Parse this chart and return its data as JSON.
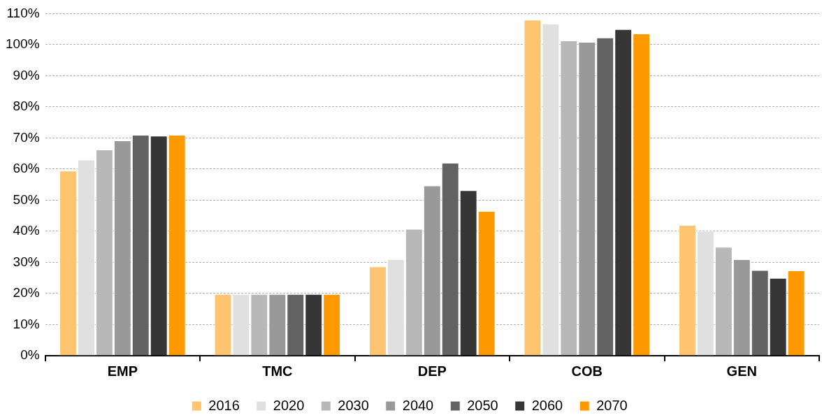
{
  "chart_data": {
    "type": "bar",
    "categories": [
      "EMP",
      "TMC",
      "DEP",
      "COB",
      "GEN"
    ],
    "series": [
      {
        "name": "2016",
        "color": "#ffc470",
        "values": [
          59.5,
          19.8,
          28.7,
          108,
          42
        ]
      },
      {
        "name": "2020",
        "color": "#e0e0e0",
        "values": [
          63,
          19.8,
          31,
          106.7,
          40.1
        ]
      },
      {
        "name": "2030",
        "color": "#b8b8b8",
        "values": [
          66.3,
          19.8,
          40.8,
          101.3,
          35
        ]
      },
      {
        "name": "2040",
        "color": "#999999",
        "values": [
          69.2,
          19.8,
          54.7,
          100.9,
          31
        ]
      },
      {
        "name": "2050",
        "color": "#636363",
        "values": [
          71,
          19.8,
          62,
          102.3,
          27.5
        ]
      },
      {
        "name": "2060",
        "color": "#363636",
        "values": [
          70.7,
          19.8,
          53.2,
          105,
          25
        ]
      },
      {
        "name": "2070",
        "color": "#ff9900",
        "values": [
          71,
          19.8,
          46.5,
          103.6,
          27.4
        ]
      }
    ],
    "ylim": [
      0,
      110
    ],
    "yticks": [
      {
        "value": 0,
        "label": "0%"
      },
      {
        "value": 10,
        "label": "10%"
      },
      {
        "value": 20,
        "label": "20%"
      },
      {
        "value": 30,
        "label": "30%"
      },
      {
        "value": 40,
        "label": "40%"
      },
      {
        "value": 50,
        "label": "50%"
      },
      {
        "value": 60,
        "label": "60%"
      },
      {
        "value": 70,
        "label": "70%"
      },
      {
        "value": 80,
        "label": "80%"
      },
      {
        "value": 90,
        "label": "90%"
      },
      {
        "value": 100,
        "label": "100%"
      },
      {
        "value": 110,
        "label": "110%"
      }
    ],
    "grid": "y",
    "legend": "bottom"
  }
}
